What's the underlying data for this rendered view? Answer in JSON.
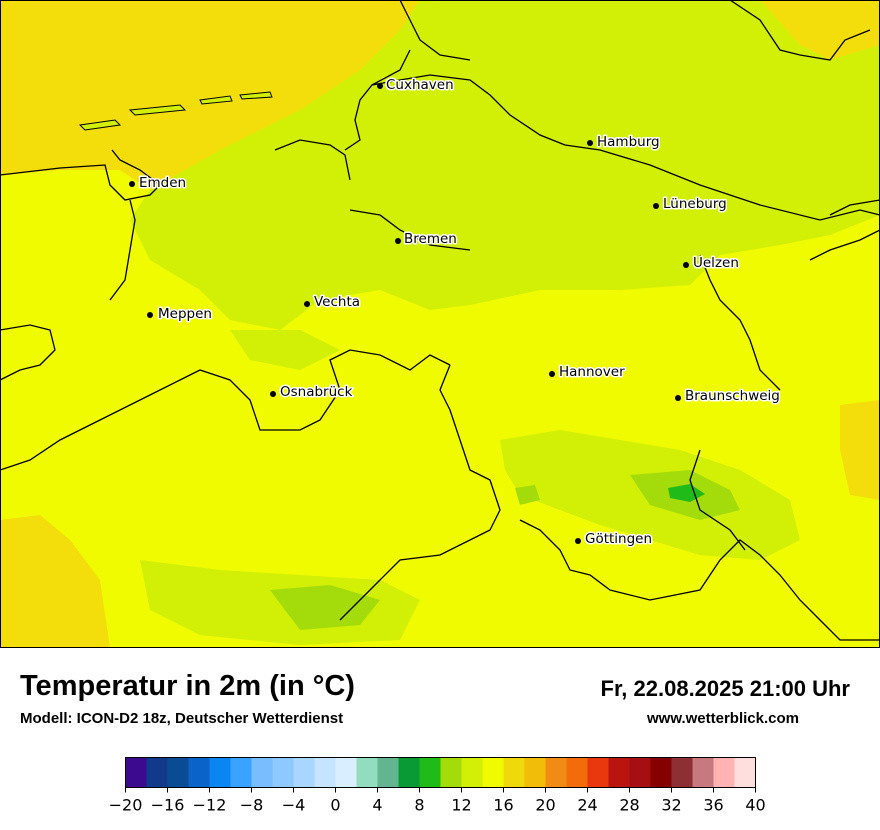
{
  "title": "Temperatur in 2m (in °C)",
  "model": "Modell: ICON-D2 18z, Deutscher Wetterdienst",
  "datetime": "Fr, 22.08.2025 21:00 Uhr",
  "website": "www.wetterblick.com",
  "cities": [
    "Cuxhaven",
    "Hamburg",
    "Emden",
    "Lüneburg",
    "Bremen",
    "Uelzen",
    "Vechta",
    "Meppen",
    "Hannover",
    "Osnabrück",
    "Braunschweig",
    "Göttingen"
  ],
  "legend": {
    "colors": [
      "#3b0a8e",
      "#123a8a",
      "#0a4c94",
      "#0963c8",
      "#0b86f0",
      "#3aa3ff",
      "#79bdff",
      "#8ec8ff",
      "#a8d6ff",
      "#c6e4ff",
      "#d9eeff",
      "#92dcc0",
      "#63b58f",
      "#0a9a35",
      "#20bb18",
      "#a3dc0a",
      "#d2ef06",
      "#f0fb00",
      "#efd80b",
      "#f2bd08",
      "#f08c13",
      "#f26c0c",
      "#e9370e",
      "#ba1410",
      "#a50e12",
      "#850000",
      "#8d2f33",
      "#c67a7f",
      "#ffb3b3",
      "#ffdede"
    ],
    "min": -20,
    "max": 40,
    "tick_labels": [
      "−20",
      "−16",
      "−12",
      "−8",
      "−4",
      "0",
      "4",
      "8",
      "12",
      "16",
      "20",
      "24",
      "28",
      "32",
      "36",
      "40"
    ]
  }
}
